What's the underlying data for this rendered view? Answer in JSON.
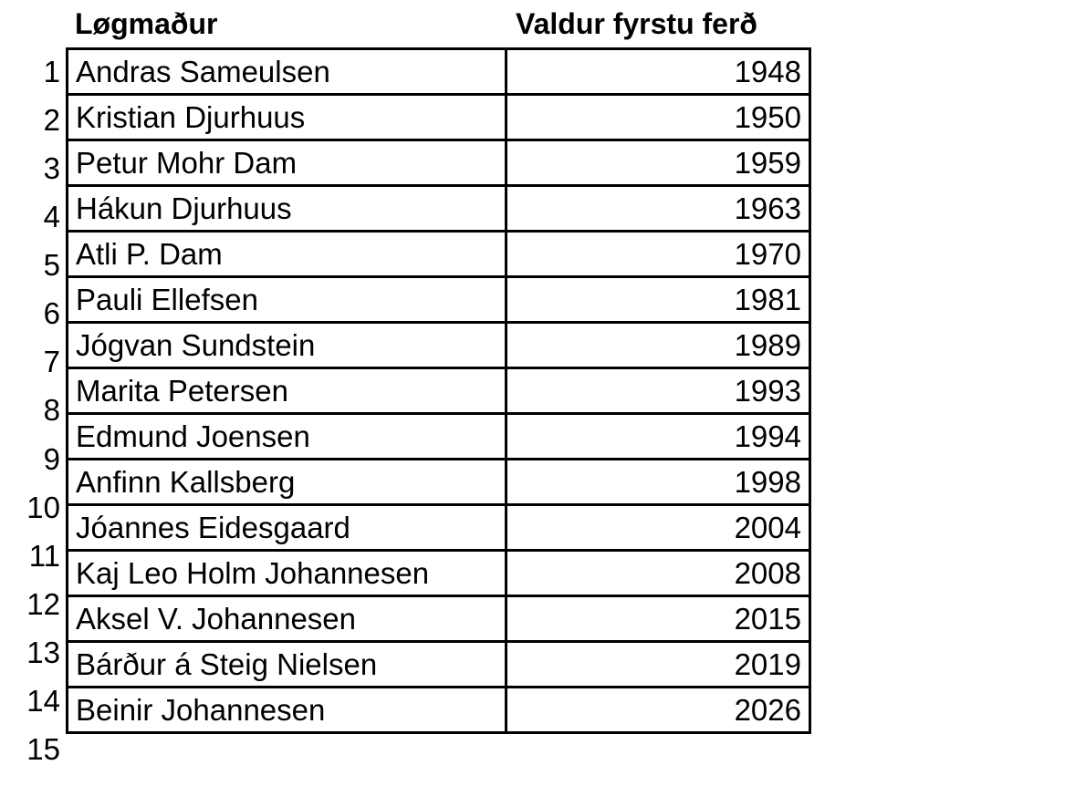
{
  "headers": {
    "name": "Løgmaður",
    "year": "Valdur fyrstu ferð"
  },
  "rows": [
    {
      "n": "1",
      "name": "Andras Sameulsen",
      "year": "1948"
    },
    {
      "n": "2",
      "name": "Kristian Djurhuus",
      "year": "1950"
    },
    {
      "n": "3",
      "name": "Petur Mohr Dam",
      "year": "1959"
    },
    {
      "n": "4",
      "name": "Hákun Djurhuus",
      "year": "1963"
    },
    {
      "n": "5",
      "name": "Atli P. Dam",
      "year": "1970"
    },
    {
      "n": "6",
      "name": "Pauli Ellefsen",
      "year": "1981"
    },
    {
      "n": "7",
      "name": "Jógvan Sundstein",
      "year": "1989"
    },
    {
      "n": "8",
      "name": "Marita Petersen",
      "year": "1993"
    },
    {
      "n": "9",
      "name": "Edmund Joensen",
      "year": "1994"
    },
    {
      "n": "10",
      "name": "Anfinn Kallsberg",
      "year": "1998"
    },
    {
      "n": "11",
      "name": "Jóannes Eidesgaard",
      "year": "2004"
    },
    {
      "n": "12",
      "name": "Kaj Leo Holm Johannesen",
      "year": "2008"
    },
    {
      "n": "13",
      "name": "Aksel V. Johannesen",
      "year": "2015"
    },
    {
      "n": "14",
      "name": "Bárður á Steig Nielsen",
      "year": "2019"
    },
    {
      "n": "15",
      "name": "Beinir Johannesen",
      "year": "2026"
    }
  ]
}
